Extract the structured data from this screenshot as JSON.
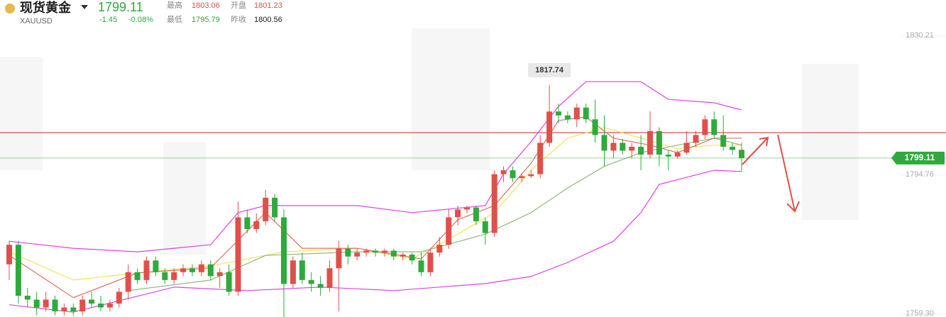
{
  "header": {
    "title": "现货黄金",
    "symbol": "XAUUSD",
    "price": 1799.11,
    "change": {
      "value": -1.45,
      "label": "-1.45"
    },
    "change_pct": {
      "value": -0.08,
      "label": "-0.08%"
    },
    "high_label": "最高",
    "high": 1803.06,
    "open_label": "开盘",
    "open": 1801.23,
    "low_label": "最低",
    "low": 1795.79,
    "prev_close_label": "昨收",
    "prev_close": 1800.56
  },
  "chart_data": {
    "type": "candlestick",
    "ylim": [
      1758.57,
      1839.44
    ],
    "yticks": [
      1830.21,
      1794.76,
      {
        "value": 1759.3,
        "label": "1759.30"
      }
    ],
    "up_color": "#e0504a",
    "down_color": "#2eaa3c",
    "ohlc": [
      [
        1772,
        1778,
        1768,
        1777
      ],
      [
        1777,
        1778,
        1762,
        1764
      ],
      [
        1764,
        1766,
        1761,
        1763
      ],
      [
        1763,
        1765,
        1759,
        1761
      ],
      [
        1761,
        1765,
        1760,
        1763
      ],
      [
        1763,
        1764,
        1759,
        1760
      ],
      [
        1760,
        1762,
        1759,
        1761
      ],
      [
        1761,
        1762,
        1759,
        1760
      ],
      [
        1760,
        1764,
        1759,
        1763
      ],
      [
        1763,
        1765,
        1761,
        1762
      ],
      [
        1762,
        1764,
        1760,
        1761
      ],
      [
        1761,
        1763,
        1760,
        1762
      ],
      [
        1762,
        1766,
        1761,
        1765
      ],
      [
        1765,
        1772,
        1763,
        1770
      ],
      [
        1770,
        1771,
        1767,
        1768
      ],
      [
        1768,
        1774,
        1767,
        1773
      ],
      [
        1773,
        1774,
        1769,
        1770
      ],
      [
        1770,
        1771,
        1767,
        1768
      ],
      [
        1768,
        1771,
        1767,
        1770
      ],
      [
        1770,
        1772,
        1769,
        1771
      ],
      [
        1771,
        1772,
        1769,
        1770
      ],
      [
        1770,
        1773,
        1769,
        1772
      ],
      [
        1772,
        1773,
        1768,
        1769
      ],
      [
        1769,
        1771,
        1766,
        1770
      ],
      [
        1770,
        1772,
        1764,
        1765
      ],
      [
        1765,
        1788,
        1764,
        1784
      ],
      [
        1784,
        1786,
        1780,
        1781
      ],
      [
        1781,
        1785,
        1780,
        1783
      ],
      [
        1783,
        1791,
        1782,
        1789
      ],
      [
        1789,
        1790,
        1783,
        1784
      ],
      [
        1784,
        1786,
        1758,
        1767
      ],
      [
        1767,
        1774,
        1766,
        1773
      ],
      [
        1773,
        1775,
        1767,
        1768
      ],
      [
        1768,
        1770,
        1765,
        1767
      ],
      [
        1767,
        1769,
        1764,
        1766
      ],
      [
        1766,
        1773,
        1765,
        1771
      ],
      [
        1771,
        1778,
        1760,
        1776
      ],
      [
        1776,
        1777,
        1772,
        1774
      ],
      [
        1774,
        1776,
        1773,
        1775
      ],
      [
        1775,
        1776,
        1774,
        1775.5
      ],
      [
        1775.5,
        1776,
        1774,
        1775
      ],
      [
        1775,
        1776,
        1774,
        1775.5
      ],
      [
        1775.5,
        1776,
        1773,
        1774
      ],
      [
        1774,
        1775,
        1773,
        1774.5
      ],
      [
        1774.5,
        1775,
        1772,
        1773
      ],
      [
        1773,
        1775,
        1769,
        1770
      ],
      [
        1770,
        1776,
        1769,
        1775
      ],
      [
        1775,
        1779,
        1774,
        1777
      ],
      [
        1777,
        1786,
        1776,
        1784
      ],
      [
        1784,
        1787,
        1782,
        1786
      ],
      [
        1786,
        1787,
        1785,
        1786.5
      ],
      [
        1786.5,
        1787,
        1782,
        1783
      ],
      [
        1783,
        1784,
        1777,
        1780
      ],
      [
        1780,
        1796,
        1779,
        1795
      ],
      [
        1795,
        1797,
        1793,
        1796
      ],
      [
        1796,
        1797,
        1793,
        1794
      ],
      [
        1794,
        1795,
        1793,
        1794.5
      ],
      [
        1794.5,
        1796,
        1794,
        1795
      ],
      [
        1795,
        1805,
        1794,
        1803
      ],
      [
        1803,
        1817.74,
        1802,
        1811
      ],
      [
        1811,
        1813,
        1808,
        1810
      ],
      [
        1810,
        1811,
        1808,
        1809
      ],
      [
        1809,
        1813,
        1807,
        1812
      ],
      [
        1812,
        1813,
        1808,
        1809
      ],
      [
        1809,
        1814,
        1803,
        1805
      ],
      [
        1805,
        1810,
        1797,
        1801
      ],
      [
        1801,
        1805,
        1799,
        1803
      ],
      [
        1803,
        1804,
        1800,
        1801
      ],
      [
        1801,
        1803,
        1799,
        1802
      ],
      [
        1802,
        1805,
        1796,
        1800
      ],
      [
        1800,
        1811,
        1799,
        1806
      ],
      [
        1806,
        1807,
        1797,
        1800
      ],
      [
        1800,
        1801,
        1796,
        1799.5
      ],
      [
        1799.5,
        1801,
        1799,
        1800.5
      ],
      [
        1800.5,
        1806,
        1800,
        1803
      ],
      [
        1803,
        1806,
        1802,
        1805
      ],
      [
        1805,
        1810,
        1804,
        1809
      ],
      [
        1809,
        1811,
        1804,
        1805
      ],
      [
        1805,
        1810,
        1801,
        1802
      ],
      [
        1802,
        1803,
        1800,
        1801.2
      ],
      [
        1801.23,
        1803.06,
        1795.79,
        1799.11
      ]
    ],
    "lines": [
      {
        "color": "#e040e8",
        "x": [
          0,
          7,
          14,
          22,
          25,
          28,
          38,
          44,
          52,
          54,
          57,
          60,
          63,
          69,
          72,
          77,
          80
        ],
        "values": [
          1777.9,
          1776.1,
          1775.2,
          1777.0,
          1785.2,
          1787.0,
          1787.0,
          1785.2,
          1787.0,
          1795.1,
          1803.3,
          1812.3,
          1818.6,
          1818.6,
          1814.1,
          1813.2,
          1811.4
        ]
      },
      {
        "color": "#e040e8",
        "x": [
          0,
          7,
          18,
          26,
          34,
          42,
          52,
          57,
          61,
          66,
          69,
          71,
          77,
          80
        ],
        "values": [
          1761.7,
          1759.8,
          1766.2,
          1765.3,
          1766.2,
          1765.3,
          1767.1,
          1768.9,
          1772.5,
          1777.9,
          1785.2,
          1792.4,
          1796.0,
          1795.7
        ]
      },
      {
        "color": "#f2e35a",
        "x": [
          0,
          7,
          14,
          22,
          30,
          38,
          44,
          49,
          53,
          57,
          61,
          65,
          69,
          73,
          77,
          80
        ],
        "values": [
          1775.2,
          1768.0,
          1769.8,
          1771.6,
          1775.2,
          1776.1,
          1773.4,
          1779.7,
          1785.2,
          1796.0,
          1804.2,
          1806.9,
          1804.2,
          1801.5,
          1802.4,
          1802.4
        ]
      },
      {
        "color": "#8fba7a",
        "x": [
          13,
          22,
          28,
          38,
          45,
          52,
          57,
          61,
          65,
          69,
          73,
          77,
          80
        ],
        "values": [
          1765.3,
          1768.0,
          1774.3,
          1775.2,
          1775.2,
          1779.7,
          1785.2,
          1791.5,
          1797.0,
          1800.5,
          1802.4,
          1804.2,
          1802.4
        ]
      },
      {
        "color": "#e07060",
        "x": [
          0,
          7,
          14,
          22,
          28,
          32,
          38,
          45,
          49,
          53,
          57,
          60,
          63,
          66,
          70,
          73,
          77,
          80
        ],
        "values": [
          1774.3,
          1763.5,
          1769.8,
          1771.1,
          1785.2,
          1776.1,
          1776.1,
          1773.4,
          1783.4,
          1787.0,
          1797.8,
          1808.7,
          1809.6,
          1804.2,
          1802.4,
          1800.5,
          1804.2,
          1804.2
        ]
      }
    ],
    "hlines": [
      {
        "value": 1805.6,
        "color": "#c8402f"
      }
    ],
    "last_price": 1799.11,
    "last_color": "#2eaa3c",
    "peak": {
      "index": 59,
      "value": 1817.74
    }
  }
}
